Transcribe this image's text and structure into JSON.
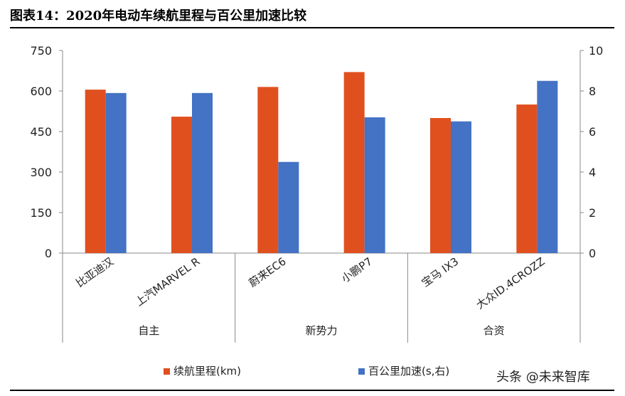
{
  "title": "图表14：2020年电动车续航里程与百公里加速比较",
  "watermark": "头条 @未来智库",
  "colors": {
    "range": "#e0501f",
    "accel": "#4472c4",
    "axis": "#888888"
  },
  "chart_data": {
    "type": "bar",
    "title": "2020年电动车续航里程与百公里加速比较",
    "categories": [
      "比亚迪汉",
      "上汽MARVEL R",
      "蔚来EC6",
      "小鹏P7",
      "宝马 IX3",
      "大众ID.4CROZZ"
    ],
    "groups": [
      {
        "label": "自主",
        "start": 0,
        "end": 1
      },
      {
        "label": "新势力",
        "start": 2,
        "end": 3
      },
      {
        "label": "合资",
        "start": 4,
        "end": 5
      }
    ],
    "series": [
      {
        "name": "续航里程(km)",
        "axis": "left",
        "values": [
          605,
          505,
          615,
          670,
          500,
          550
        ]
      },
      {
        "name": "百公里加速(s,右)",
        "axis": "right",
        "values": [
          7.9,
          7.9,
          4.5,
          6.7,
          6.5,
          8.5
        ]
      }
    ],
    "y_left": {
      "min": 0,
      "max": 750,
      "ticks": [
        0,
        150,
        300,
        450,
        600,
        750
      ]
    },
    "y_right": {
      "min": 0,
      "max": 10,
      "ticks": [
        0,
        2,
        4,
        6,
        8,
        10
      ]
    },
    "legend_position": "bottom",
    "grid": false
  }
}
